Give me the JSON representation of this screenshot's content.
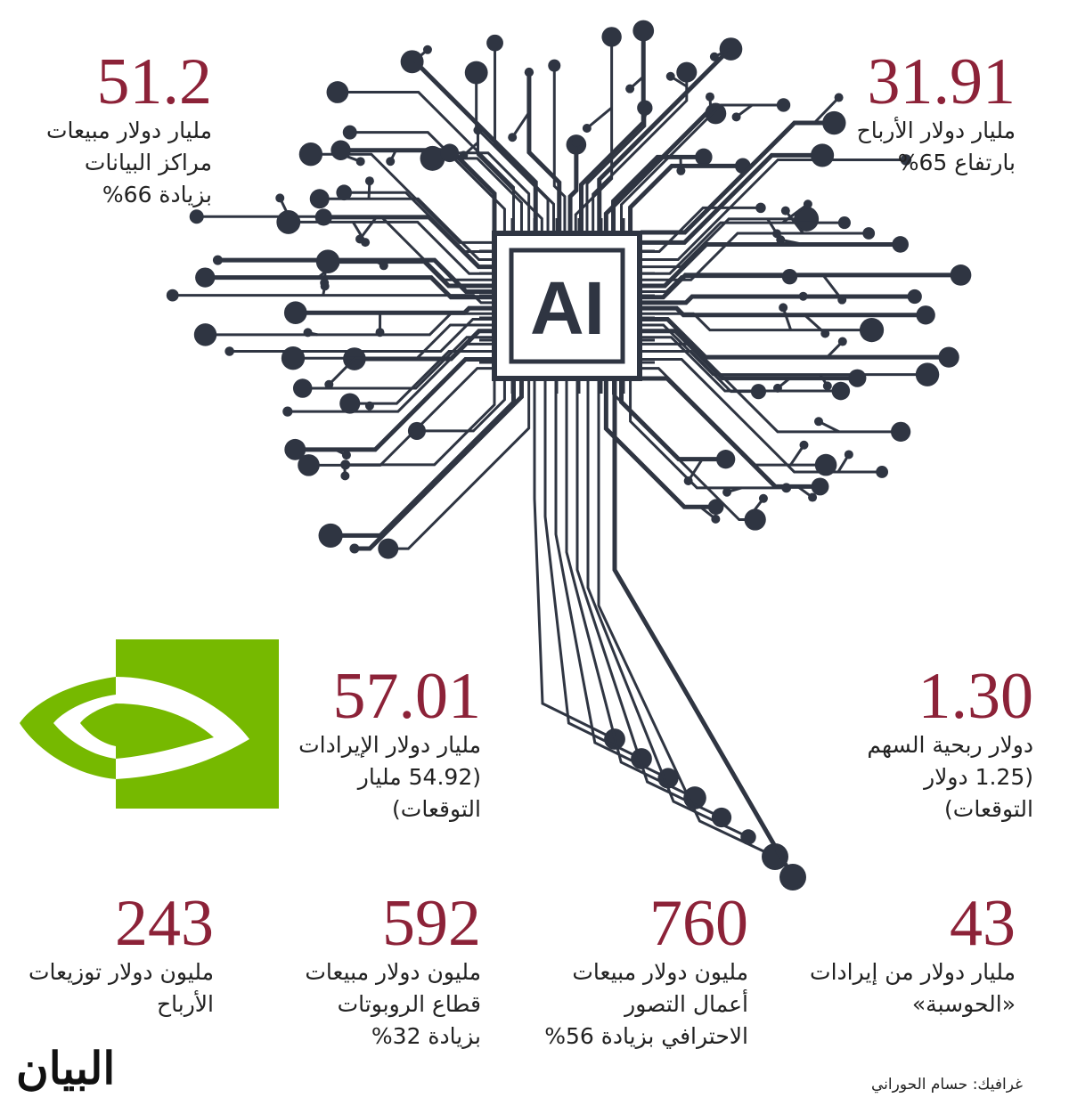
{
  "chip": "AI",
  "stats": [
    {
      "number": "51.2",
      "lines": [
        "مليار دولار مبيعات",
        "مراكز البيانات",
        "بزيادة 66%"
      ]
    },
    {
      "number": "31.91",
      "lines": [
        "مليار دولار الأرباح",
        "بارتفاع 65%"
      ]
    },
    {
      "number": "57.01",
      "lines": [
        "مليار دولار الإيرادات",
        "(54.92 مليار",
        "التوقعات)"
      ]
    },
    {
      "number": "1.30",
      "lines": [
        "دولار ربحية السهم",
        "(1.25 دولار",
        "التوقعات)"
      ]
    },
    {
      "number": "243",
      "lines": [
        "مليون دولار توزيعات",
        "الأرباح"
      ]
    },
    {
      "number": "592",
      "lines": [
        "مليون دولار مبيعات",
        "قطاع الروبوتات",
        "بزيادة 32%"
      ]
    },
    {
      "number": "760",
      "lines": [
        "مليون دولار مبيعات",
        "أعمال التصور",
        "الاحترافي بزيادة 56%"
      ]
    },
    {
      "number": "43",
      "lines": [
        "مليار دولار من إيرادات",
        "«الحوسبة»"
      ]
    }
  ],
  "footer": {
    "logo": "البيان",
    "credit": "غرافيك: حسام الحوراني"
  }
}
